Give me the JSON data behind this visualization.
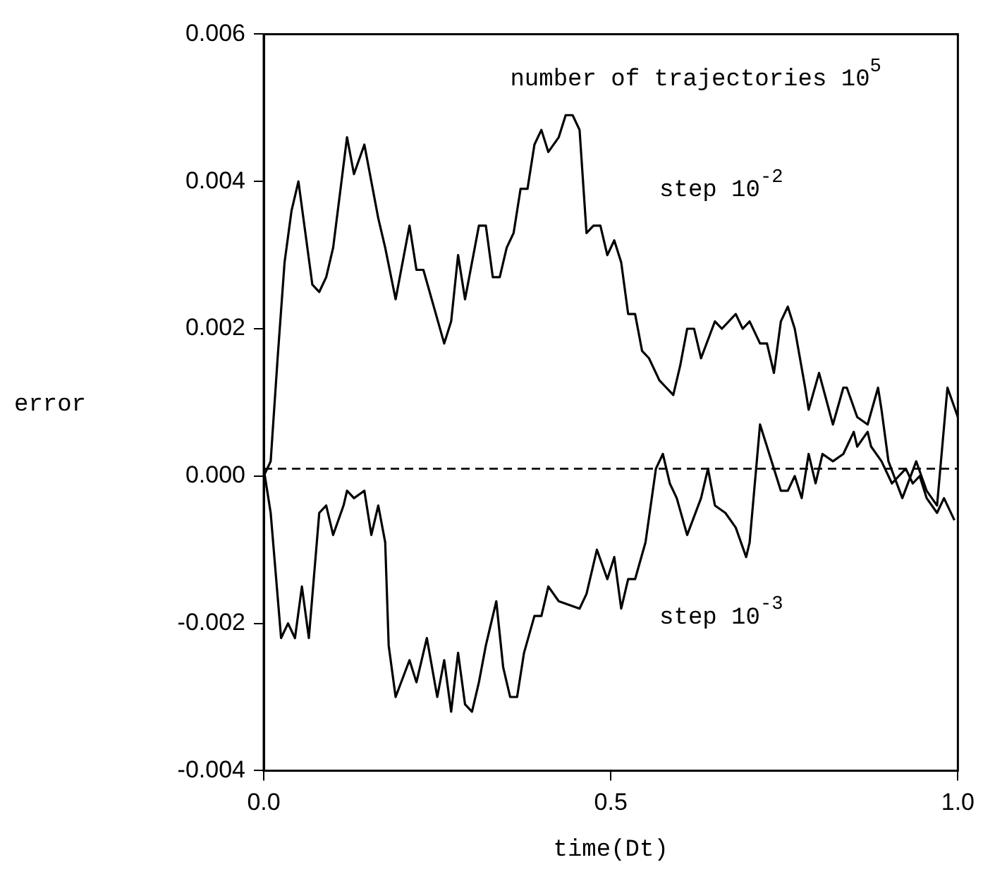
{
  "chart_data": {
    "type": "line",
    "xlabel": "time(Dt)",
    "ylabel": "error",
    "xlim": [
      0,
      1
    ],
    "xticks": [
      {
        "value": 0,
        "label": "0.0"
      },
      0.5,
      {
        "value": 1,
        "label": "1.0"
      }
    ],
    "ylim": [
      -0.004,
      0.006
    ],
    "yticks": [
      {
        "value": -0.004,
        "label": "-0.004"
      },
      {
        "value": -0.002,
        "label": "-0.002"
      },
      {
        "value": 0,
        "label": "0.000"
      },
      {
        "value": 0.002,
        "label": "0.002"
      },
      {
        "value": 0.004,
        "label": "0.004"
      },
      {
        "value": 0.006,
        "label": "0.006"
      }
    ],
    "grid": false,
    "legend": false,
    "marker": "none",
    "line_style": "solid",
    "ref_lines": [
      {
        "axis": "y",
        "value": 0.0001,
        "line_style": "dashed",
        "color": "#000000"
      }
    ],
    "annotations": [
      "number of trajectories 10$^{5}$",
      "step 10$^{-2}$",
      "step 10$^{-3}$"
    ],
    "series": [
      {
        "color": "#000000",
        "x": [
          0,
          0.01,
          0.02,
          0.03,
          0.04,
          0.05,
          0.07,
          0.08,
          0.09,
          0.1,
          0.12,
          0.13,
          0.145,
          0.165,
          0.175,
          0.19,
          0.21,
          0.22,
          0.23,
          0.26,
          0.27,
          0.28,
          0.29,
          0.31,
          0.32,
          0.33,
          0.34,
          0.35,
          0.36,
          0.37,
          0.38,
          0.39,
          0.4,
          0.41,
          0.425,
          0.435,
          0.445,
          0.455,
          0.465,
          0.475,
          0.485,
          0.495,
          0.505,
          0.515,
          0.525,
          0.535,
          0.545,
          0.555,
          0.57,
          0.58,
          0.59,
          0.6,
          0.61,
          0.62,
          0.63,
          0.65,
          0.66,
          0.68,
          0.69,
          0.7,
          0.715,
          0.725,
          0.735,
          0.745,
          0.755,
          0.765,
          0.78,
          0.785,
          0.8,
          0.82,
          0.835,
          0.84,
          0.855,
          0.87,
          0.885,
          0.89,
          0.9,
          0.92,
          0.94,
          0.955,
          0.97,
          0.985,
          1.0
        ],
        "values": [
          0,
          0.0002,
          0.0016,
          0.0029,
          0.0036,
          0.004,
          0.0026,
          0.0025,
          0.0027,
          0.0031,
          0.0046,
          0.0041,
          0.0045,
          0.0035,
          0.0031,
          0.0024,
          0.0034,
          0.0028,
          0.0028,
          0.0018,
          0.0021,
          0.003,
          0.0024,
          0.0034,
          0.0034,
          0.0027,
          0.0027,
          0.0031,
          0.0033,
          0.0039,
          0.0039,
          0.0045,
          0.0047,
          0.0044,
          0.0046,
          0.0049,
          0.0049,
          0.0047,
          0.0033,
          0.0034,
          0.0034,
          0.003,
          0.0032,
          0.0029,
          0.0022,
          0.0022,
          0.0017,
          0.0016,
          0.0013,
          0.0012,
          0.0011,
          0.0015,
          0.002,
          0.002,
          0.0016,
          0.0021,
          0.002,
          0.0022,
          0.002,
          0.0021,
          0.0018,
          0.0018,
          0.0014,
          0.0021,
          0.0023,
          0.002,
          0.0012,
          0.0009,
          0.0014,
          0.0007,
          0.0012,
          0.0012,
          0.0008,
          0.0007,
          0.0012,
          0.0009,
          0.0002,
          -0.0003,
          0.0002,
          -0.0002,
          -0.0004,
          0.0012,
          0.0008
        ]
      },
      {
        "color": "#000000",
        "x": [
          0,
          0.01,
          0.025,
          0.035,
          0.045,
          0.055,
          0.065,
          0.08,
          0.09,
          0.1,
          0.115,
          0.12,
          0.13,
          0.145,
          0.155,
          0.165,
          0.175,
          0.18,
          0.19,
          0.21,
          0.22,
          0.235,
          0.25,
          0.26,
          0.27,
          0.28,
          0.29,
          0.3,
          0.31,
          0.32,
          0.335,
          0.345,
          0.355,
          0.365,
          0.375,
          0.39,
          0.4,
          0.41,
          0.425,
          0.455,
          0.465,
          0.48,
          0.495,
          0.505,
          0.515,
          0.525,
          0.535,
          0.55,
          0.565,
          0.575,
          0.585,
          0.595,
          0.61,
          0.63,
          0.64,
          0.65,
          0.665,
          0.68,
          0.695,
          0.7,
          0.715,
          0.725,
          0.745,
          0.755,
          0.765,
          0.775,
          0.785,
          0.795,
          0.805,
          0.82,
          0.835,
          0.85,
          0.855,
          0.87,
          0.875,
          0.89,
          0.905,
          0.925,
          0.935,
          0.945,
          0.955,
          0.97,
          0.98,
          0.995
        ],
        "values": [
          0.0001,
          -0.0005,
          -0.0022,
          -0.002,
          -0.0022,
          -0.0015,
          -0.0022,
          -0.0005,
          -0.0004,
          -0.0008,
          -0.0004,
          -0.0002,
          -0.0003,
          -0.0002,
          -0.0008,
          -0.0004,
          -0.0009,
          -0.0023,
          -0.003,
          -0.0025,
          -0.0028,
          -0.0022,
          -0.003,
          -0.0025,
          -0.0032,
          -0.0024,
          -0.0031,
          -0.0032,
          -0.0028,
          -0.0023,
          -0.0017,
          -0.0026,
          -0.003,
          -0.003,
          -0.0024,
          -0.0019,
          -0.0019,
          -0.0015,
          -0.0017,
          -0.0018,
          -0.0016,
          -0.001,
          -0.0014,
          -0.0011,
          -0.0018,
          -0.0014,
          -0.0014,
          -0.0009,
          0.0001,
          0.0003,
          -0.0001,
          -0.0003,
          -0.0008,
          -0.0003,
          0.0001,
          -0.0004,
          -0.0005,
          -0.0007,
          -0.0011,
          -0.0009,
          0.0007,
          0.0004,
          -0.0002,
          -0.0002,
          0,
          -0.0003,
          0.0003,
          -0.0001,
          0.0003,
          0.0002,
          0.0003,
          0.0006,
          0.0004,
          0.0006,
          0.0004,
          0.0002,
          -0.0001,
          0.0001,
          -0.0001,
          0,
          -0.0003,
          -0.0005,
          -0.0003,
          -0.0006
        ]
      }
    ]
  }
}
